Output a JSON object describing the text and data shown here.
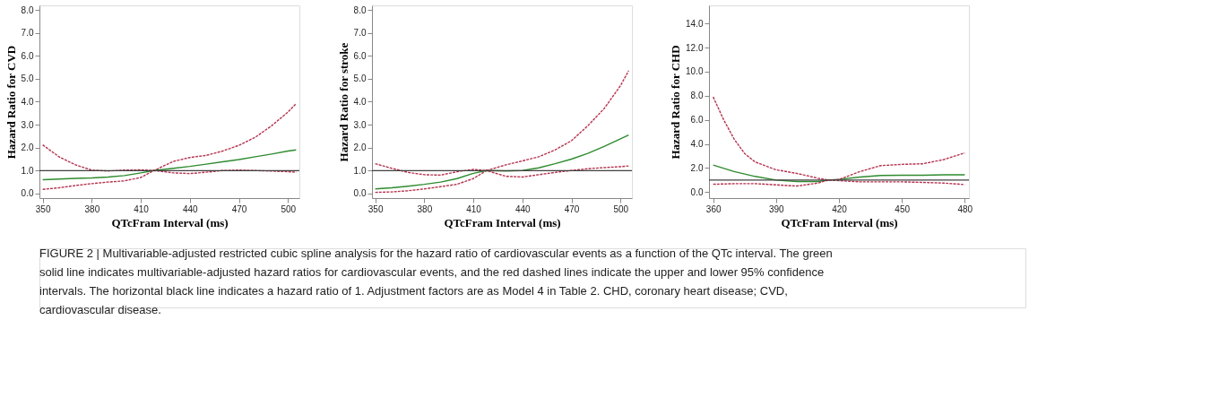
{
  "chart_data": [
    {
      "type": "line",
      "xlabel": "QTcFram Interval (ms)",
      "ylabel": "Hazard Ratio for CVD",
      "xlim": [
        348,
        507
      ],
      "xticks": [
        350,
        380,
        410,
        440,
        470,
        500
      ],
      "ylim": [
        -0.2,
        8.2
      ],
      "yticks": [
        {
          "value": 0,
          "label": "0.0"
        },
        {
          "value": 1,
          "label": "1.0"
        },
        {
          "value": 2,
          "label": "2.0"
        },
        {
          "value": 3,
          "label": "3.0"
        },
        {
          "value": 4,
          "label": "4.0"
        },
        {
          "value": 5,
          "label": "5.0"
        },
        {
          "value": 6,
          "label": "6.0"
        },
        {
          "value": 7,
          "label": "7.0"
        },
        {
          "value": 8,
          "label": "8.0"
        }
      ],
      "grid": false,
      "legend": false,
      "ref_lines": [
        {
          "axis": "y",
          "value": 1,
          "color": "#404040"
        }
      ],
      "series": [
        {
          "color": "#2e8b2e",
          "line_style": "solid",
          "x": [
            350,
            360,
            370,
            380,
            390,
            400,
            410,
            418,
            430,
            440,
            450,
            460,
            470,
            480,
            490,
            500,
            505
          ],
          "values": [
            0.6,
            0.63,
            0.66,
            0.68,
            0.72,
            0.78,
            0.9,
            1.0,
            1.1,
            1.18,
            1.28,
            1.38,
            1.48,
            1.6,
            1.72,
            1.85,
            1.9
          ]
        },
        {
          "color": "#b5334f",
          "line_style": "dashed",
          "x": [
            350,
            360,
            370,
            380,
            390,
            400,
            410,
            418,
            430,
            440,
            450,
            460,
            470,
            480,
            490,
            500,
            505
          ],
          "values": [
            2.12,
            1.6,
            1.25,
            1.02,
            0.98,
            1.02,
            1.03,
            1.0,
            1.4,
            1.57,
            1.66,
            1.85,
            2.1,
            2.45,
            2.95,
            3.55,
            3.92
          ]
        },
        {
          "color": "#b5334f",
          "line_style": "dashed",
          "x": [
            350,
            360,
            370,
            380,
            390,
            400,
            410,
            418,
            430,
            440,
            450,
            460,
            470,
            480,
            490,
            500,
            505
          ],
          "values": [
            0.18,
            0.25,
            0.35,
            0.43,
            0.5,
            0.55,
            0.7,
            1.0,
            0.9,
            0.87,
            0.93,
            1.0,
            1.02,
            1.0,
            0.98,
            0.95,
            0.93
          ]
        }
      ],
      "annotations": [
        "FIGURE 2 | Multivariable-adjusted restricted cubic spline analysis for the hazard ratio of cardiovascular events as a function of the QTc interval. The green solid line indicates multivariable-adjusted hazard ratios for cardiovascular events, and the red dashed lines indicate the upper and lower 95% confidence intervals. The horizontal black line indicates a hazard ratio of 1. Adjustment factors are as Model 4 in Table 2. CHD, coronary heart disease; CVD, cardiovascular disease."
      ]
    },
    {
      "type": "line",
      "xlabel": "QTcFram Interval (ms)",
      "ylabel": "Hazard Ratio for stroke",
      "xlim": [
        348,
        507
      ],
      "xticks": [
        350,
        380,
        410,
        440,
        470,
        500
      ],
      "ylim": [
        -0.2,
        8.2
      ],
      "yticks": [
        {
          "value": 0,
          "label": "0.0"
        },
        {
          "value": 1,
          "label": "1.0"
        },
        {
          "value": 2,
          "label": "2.0"
        },
        {
          "value": 3,
          "label": "3.0"
        },
        {
          "value": 4,
          "label": "4.0"
        },
        {
          "value": 5,
          "label": "5.0"
        },
        {
          "value": 6,
          "label": "6.0"
        },
        {
          "value": 7,
          "label": "7.0"
        },
        {
          "value": 8,
          "label": "8.0"
        }
      ],
      "grid": false,
      "legend": false,
      "ref_lines": [
        {
          "axis": "y",
          "value": 1,
          "color": "#404040"
        }
      ],
      "series": [
        {
          "color": "#2e8b2e",
          "line_style": "solid",
          "x": [
            350,
            360,
            370,
            380,
            390,
            400,
            410,
            418,
            430,
            440,
            450,
            460,
            470,
            480,
            490,
            500,
            505
          ],
          "values": [
            0.2,
            0.25,
            0.32,
            0.4,
            0.5,
            0.65,
            0.88,
            1.0,
            0.98,
            1.0,
            1.12,
            1.3,
            1.5,
            1.75,
            2.05,
            2.38,
            2.55
          ]
        },
        {
          "color": "#b5334f",
          "line_style": "dashed",
          "x": [
            350,
            360,
            370,
            380,
            390,
            400,
            410,
            418,
            430,
            440,
            450,
            460,
            470,
            480,
            490,
            500,
            505
          ],
          "values": [
            1.3,
            1.1,
            0.92,
            0.82,
            0.8,
            0.95,
            1.05,
            1.0,
            1.25,
            1.42,
            1.6,
            1.9,
            2.3,
            2.95,
            3.7,
            4.7,
            5.35
          ]
        },
        {
          "color": "#b5334f",
          "line_style": "dashed",
          "x": [
            350,
            360,
            370,
            380,
            390,
            400,
            410,
            418,
            430,
            440,
            450,
            460,
            470,
            480,
            490,
            500,
            505
          ],
          "values": [
            0.05,
            0.07,
            0.12,
            0.2,
            0.3,
            0.4,
            0.65,
            1.0,
            0.75,
            0.72,
            0.82,
            0.92,
            1.0,
            1.08,
            1.13,
            1.17,
            1.2
          ]
        }
      ]
    },
    {
      "type": "line",
      "xlabel": "QTcFram Interval (ms)",
      "ylabel": "Hazard Ratio for CHD",
      "xlim": [
        358,
        482
      ],
      "xticks": [
        360,
        390,
        420,
        450,
        480
      ],
      "ylim": [
        -0.5,
        15.5
      ],
      "yticks": [
        {
          "value": 0,
          "label": "0.0"
        },
        {
          "value": 2,
          "label": "2.0"
        },
        {
          "value": 4,
          "label": "4.0"
        },
        {
          "value": 6,
          "label": "6.0"
        },
        {
          "value": 8,
          "label": "8.0"
        },
        {
          "value": 10,
          "label": "10.0"
        },
        {
          "value": 12,
          "label": "12.0"
        },
        {
          "value": 14,
          "label": "14.0"
        }
      ],
      "grid": false,
      "legend": false,
      "ref_lines": [
        {
          "axis": "y",
          "value": 1,
          "color": "#404040"
        }
      ],
      "series": [
        {
          "color": "#2e8b2e",
          "line_style": "solid",
          "x": [
            360,
            370,
            380,
            390,
            400,
            410,
            415,
            420,
            430,
            440,
            450,
            460,
            470,
            480
          ],
          "values": [
            2.25,
            1.7,
            1.3,
            1.0,
            0.88,
            0.88,
            1.0,
            1.05,
            1.25,
            1.38,
            1.4,
            1.4,
            1.43,
            1.43
          ]
        },
        {
          "color": "#b5334f",
          "line_style": "dashed",
          "x": [
            360,
            365,
            370,
            375,
            380,
            390,
            400,
            410,
            415,
            420,
            430,
            440,
            450,
            460,
            470,
            480
          ],
          "values": [
            7.9,
            6.0,
            4.4,
            3.2,
            2.5,
            1.85,
            1.55,
            1.15,
            1.0,
            1.05,
            1.7,
            2.2,
            2.3,
            2.35,
            2.7,
            3.25
          ]
        },
        {
          "color": "#b5334f",
          "line_style": "dashed",
          "x": [
            360,
            370,
            380,
            390,
            400,
            410,
            415,
            420,
            430,
            440,
            450,
            460,
            470,
            480
          ],
          "values": [
            0.65,
            0.7,
            0.7,
            0.6,
            0.5,
            0.75,
            1.0,
            0.95,
            0.85,
            0.85,
            0.85,
            0.8,
            0.75,
            0.62
          ]
        }
      ]
    }
  ]
}
